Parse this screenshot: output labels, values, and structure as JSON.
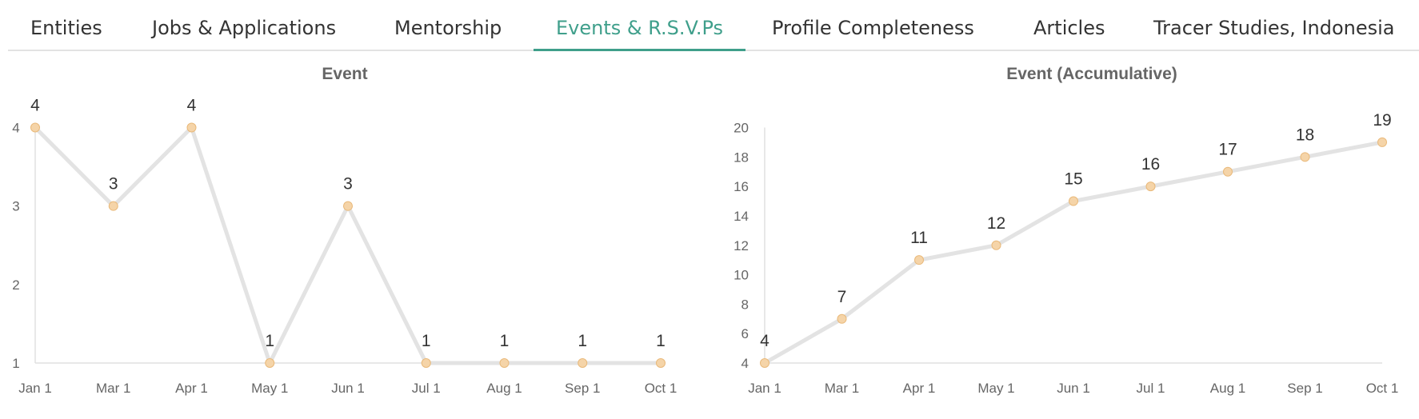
{
  "tabs": [
    {
      "label": "Entities",
      "active": false
    },
    {
      "label": "Jobs & Applications",
      "active": false
    },
    {
      "label": "Mentorship",
      "active": false
    },
    {
      "label": "Events & R.S.V.Ps",
      "active": true
    },
    {
      "label": "Profile Completeness",
      "active": false
    },
    {
      "label": "Articles",
      "active": false
    },
    {
      "label": "Tracer Studies, Indonesia",
      "active": false
    }
  ],
  "colors": {
    "accent": "#3f9f8b",
    "line": "#e3e3e3",
    "marker": "#f5d4a8",
    "marker_stroke": "#e9b97a"
  },
  "chart_data": [
    {
      "type": "line",
      "title": "Event",
      "x": [
        "Jan 1",
        "Mar 1",
        "Apr 1",
        "May 1",
        "Jun 1",
        "Jul 1",
        "Aug 1",
        "Sep 1",
        "Oct 1"
      ],
      "values": [
        4,
        3,
        4,
        1,
        3,
        1,
        1,
        1,
        1
      ],
      "yticks": [
        1,
        2,
        3,
        4
      ],
      "ylim": [
        1,
        4
      ],
      "data_labels": true,
      "grid": false
    },
    {
      "type": "line",
      "title": "Event (Accumulative)",
      "x": [
        "Jan 1",
        "Mar 1",
        "Apr 1",
        "May 1",
        "Jun 1",
        "Jul 1",
        "Aug 1",
        "Sep 1",
        "Oct 1"
      ],
      "values": [
        4,
        7,
        11,
        12,
        15,
        16,
        17,
        18,
        19
      ],
      "yticks": [
        4,
        6,
        8,
        10,
        12,
        14,
        16,
        18,
        20
      ],
      "ylim": [
        4,
        20
      ],
      "data_labels": true,
      "grid": false
    }
  ]
}
